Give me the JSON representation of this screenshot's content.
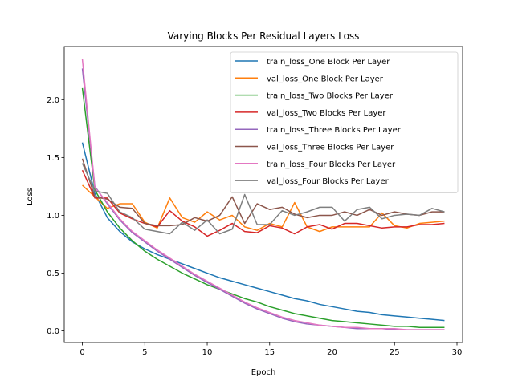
{
  "chart_data": {
    "type": "line",
    "title": "Varying Blocks Per Residual Layers Loss",
    "xlabel": "Epoch",
    "ylabel": "Loss",
    "xlim": [
      -1.45,
      30.45
    ],
    "ylim": [
      -0.1,
      2.46
    ],
    "xticks": [
      0,
      5,
      10,
      15,
      20,
      25,
      30
    ],
    "yticks": [
      0.0,
      0.5,
      1.0,
      1.5,
      2.0
    ],
    "ytick_labels": [
      "0.0",
      "0.5",
      "1.0",
      "1.5",
      "2.0"
    ],
    "grid": false,
    "legend_position": "upper right",
    "x": [
      0,
      1,
      2,
      3,
      4,
      5,
      6,
      7,
      8,
      9,
      10,
      11,
      12,
      13,
      14,
      15,
      16,
      17,
      18,
      19,
      20,
      21,
      22,
      23,
      24,
      25,
      26,
      27,
      28,
      29
    ],
    "series": [
      {
        "name": "train_loss_One Block Per Layer",
        "color": "#1f77b4",
        "values": [
          1.63,
          1.19,
          0.98,
          0.86,
          0.77,
          0.71,
          0.66,
          0.62,
          0.58,
          0.54,
          0.5,
          0.46,
          0.43,
          0.4,
          0.37,
          0.34,
          0.31,
          0.28,
          0.26,
          0.23,
          0.21,
          0.19,
          0.17,
          0.16,
          0.14,
          0.13,
          0.12,
          0.11,
          0.1,
          0.09
        ]
      },
      {
        "name": "val_loss_One Block Per Layer",
        "color": "#ff7f0e",
        "values": [
          1.26,
          1.16,
          1.06,
          1.1,
          1.1,
          0.94,
          0.89,
          1.15,
          0.98,
          0.94,
          1.03,
          0.96,
          1.0,
          0.9,
          0.87,
          0.93,
          0.9,
          1.11,
          0.9,
          0.86,
          0.9,
          0.9,
          0.9,
          0.9,
          1.02,
          0.91,
          0.89,
          0.93,
          0.94,
          0.95
        ]
      },
      {
        "name": "train_loss_Two Blocks Per Layer",
        "color": "#2ca02c",
        "values": [
          2.1,
          1.22,
          1.03,
          0.89,
          0.78,
          0.69,
          0.62,
          0.56,
          0.5,
          0.45,
          0.4,
          0.36,
          0.32,
          0.28,
          0.25,
          0.21,
          0.18,
          0.15,
          0.13,
          0.11,
          0.09,
          0.08,
          0.07,
          0.06,
          0.05,
          0.04,
          0.04,
          0.03,
          0.03,
          0.03
        ]
      },
      {
        "name": "val_loss_Two Blocks Per Layer",
        "color": "#d62728",
        "values": [
          1.39,
          1.15,
          1.15,
          1.02,
          0.97,
          0.93,
          0.9,
          1.04,
          0.95,
          0.9,
          0.82,
          0.87,
          0.93,
          0.86,
          0.85,
          0.91,
          0.89,
          0.84,
          0.9,
          0.92,
          0.88,
          0.93,
          0.93,
          0.91,
          0.89,
          0.9,
          0.9,
          0.92,
          0.92,
          0.93
        ]
      },
      {
        "name": "train_loss_Three Blocks Per Layer",
        "color": "#9467bd",
        "values": [
          2.27,
          1.25,
          1.1,
          0.96,
          0.85,
          0.77,
          0.69,
          0.62,
          0.55,
          0.48,
          0.42,
          0.36,
          0.3,
          0.24,
          0.19,
          0.15,
          0.11,
          0.08,
          0.06,
          0.05,
          0.04,
          0.03,
          0.02,
          0.02,
          0.02,
          0.01,
          0.01,
          0.01,
          0.01,
          0.01
        ]
      },
      {
        "name": "val_loss_Three Blocks Per Layer",
        "color": "#8c564b",
        "values": [
          1.49,
          1.16,
          1.14,
          1.07,
          1.06,
          0.93,
          0.91,
          0.91,
          0.92,
          0.98,
          0.95,
          1.0,
          1.16,
          0.93,
          1.1,
          1.05,
          1.07,
          1.01,
          0.98,
          1.0,
          1.0,
          1.03,
          1.0,
          1.05,
          1.0,
          1.03,
          1.01,
          1.0,
          1.03,
          1.03
        ]
      },
      {
        "name": "train_loss_Four Blocks Per Layer",
        "color": "#e377c2",
        "values": [
          2.35,
          1.24,
          1.11,
          0.97,
          0.86,
          0.78,
          0.7,
          0.63,
          0.56,
          0.49,
          0.43,
          0.37,
          0.31,
          0.25,
          0.2,
          0.16,
          0.12,
          0.09,
          0.07,
          0.05,
          0.04,
          0.03,
          0.03,
          0.02,
          0.02,
          0.02,
          0.01,
          0.01,
          0.01,
          0.01
        ]
      },
      {
        "name": "val_loss_Four Blocks Per Layer",
        "color": "#7f7f7f",
        "values": [
          1.45,
          1.21,
          1.19,
          1.03,
          0.98,
          0.88,
          0.86,
          0.84,
          0.94,
          0.87,
          0.96,
          0.84,
          0.88,
          1.18,
          0.92,
          0.92,
          1.04,
          1.0,
          1.03,
          1.07,
          1.07,
          0.95,
          1.05,
          1.07,
          0.97,
          1.0,
          1.01,
          1.0,
          1.06,
          1.03
        ]
      }
    ]
  }
}
